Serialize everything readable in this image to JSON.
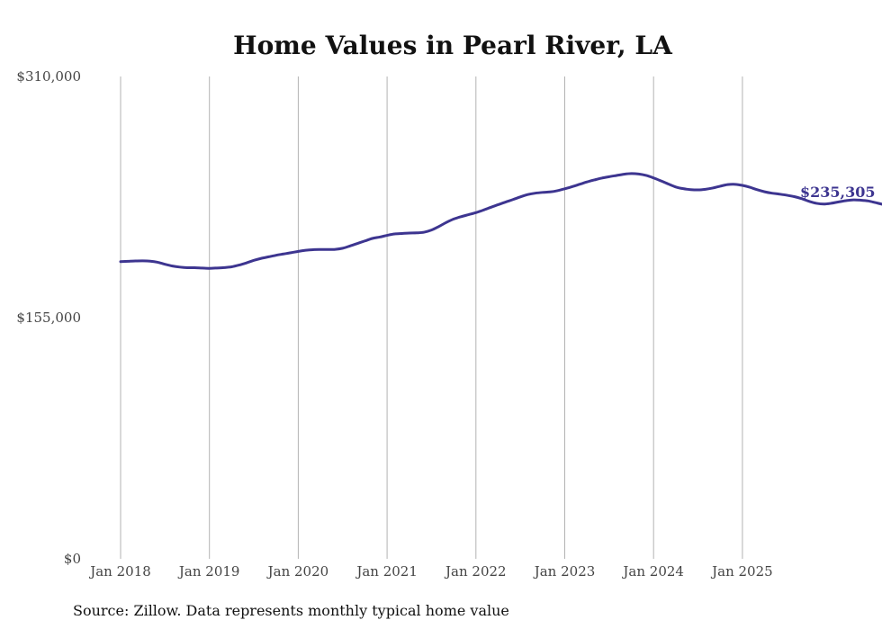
{
  "chart_data": {
    "type": "line",
    "title": "Home Values in Pearl River, LA",
    "xlabel": "",
    "ylabel": "",
    "ylim": [
      0,
      310000
    ],
    "y_ticks": [
      {
        "value": 0,
        "label": "$0"
      },
      {
        "value": 155000,
        "label": "$155,000"
      },
      {
        "value": 310000,
        "label": "$310,000"
      }
    ],
    "x_ticks": [
      "Jan 2018",
      "Jan 2019",
      "Jan 2020",
      "Jan 2021",
      "Jan 2022",
      "Jan 2023",
      "Jan 2024",
      "Jan 2025"
    ],
    "grid": "vertical",
    "line_color": "#3d3590",
    "end_label": "$235,305",
    "series": [
      {
        "x_start": "2018-01",
        "frequency": "monthly",
        "values": [
          191000,
          191200,
          191400,
          191500,
          191300,
          190600,
          189300,
          188200,
          187500,
          187100,
          187100,
          186900,
          186700,
          186900,
          187200,
          187700,
          188800,
          190200,
          191800,
          193100,
          194100,
          195100,
          195900,
          196700,
          197600,
          198300,
          198700,
          198800,
          198800,
          198900,
          199600,
          201100,
          202700,
          204300,
          205900,
          206800,
          207900,
          208800,
          209100,
          209400,
          209500,
          209900,
          211300,
          213600,
          216200,
          218400,
          219900,
          221200,
          222500,
          224100,
          225900,
          227600,
          229300,
          230900,
          232600,
          234100,
          235000,
          235500,
          235800,
          236600,
          237800,
          239200,
          240700,
          242200,
          243500,
          244700,
          245600,
          246400,
          247200,
          247600,
          247300,
          246400,
          244800,
          242900,
          240900,
          239000,
          237900,
          237300,
          237100,
          237500,
          238300,
          239500,
          240500,
          240700,
          240000,
          238800,
          237200,
          235900,
          235000,
          234400,
          233700,
          232800,
          231500,
          229800,
          228500,
          228000,
          228500,
          229400,
          230200,
          230700,
          230500,
          230000,
          228900,
          227800,
          227300,
          227700,
          228700,
          230400,
          232000,
          233400,
          234300,
          234600,
          234900,
          235300,
          235600,
          235500,
          235305
        ]
      }
    ],
    "source_note": "Source: Zillow. Data represents monthly typical home value"
  }
}
